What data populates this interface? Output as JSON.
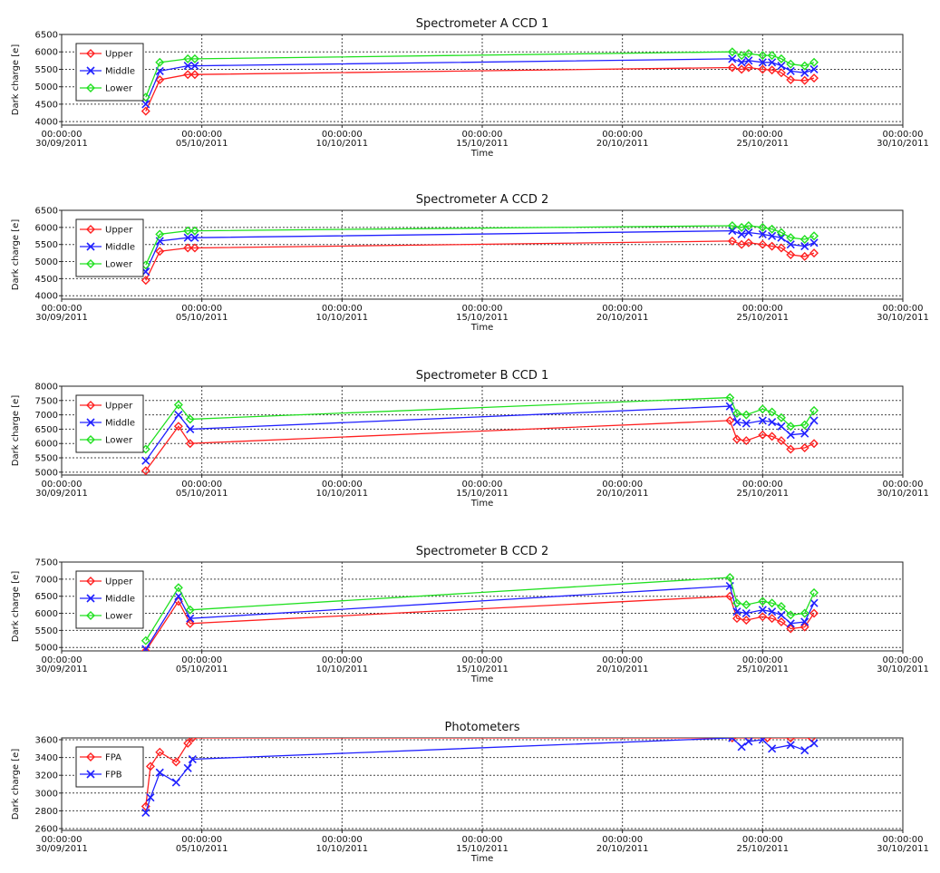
{
  "chart_data": [
    {
      "type": "line",
      "title": "Spectrometer A CCD 1",
      "xlabel": "Time",
      "ylabel": "Dark charge [e]",
      "ylim": [
        3900,
        6500
      ],
      "yticks": [
        4000,
        4500,
        5000,
        5500,
        6000,
        6500
      ],
      "xlim": [
        "2011-09-30 00:00",
        "2011-10-30 00:00"
      ],
      "xticks": [
        {
          "t": "2011-09-30 00:00",
          "line1": "00:00:00",
          "line2": "30/09/2011"
        },
        {
          "t": "2011-10-05 00:00",
          "line1": "00:00:00",
          "line2": "05/10/2011"
        },
        {
          "t": "2011-10-10 00:00",
          "line1": "00:00:00",
          "line2": "10/10/2011"
        },
        {
          "t": "2011-10-15 00:00",
          "line1": "00:00:00",
          "line2": "15/10/2011"
        },
        {
          "t": "2011-10-20 00:00",
          "line1": "00:00:00",
          "line2": "20/10/2011"
        },
        {
          "t": "2011-10-25 00:00",
          "line1": "00:00:00",
          "line2": "25/10/2011"
        },
        {
          "t": "2011-10-30 00:00",
          "line1": "00:00:00",
          "line2": "30/10/2011"
        }
      ],
      "grid": true,
      "legend_position": "top-left",
      "series": [
        {
          "name": "Upper",
          "color": "#ff2020",
          "marker": "diamond",
          "x": [
            "2011-10-03 00:00",
            "2011-10-03 12:00",
            "2011-10-04 12:00",
            "2011-10-04 18:00",
            "2011-10-23 22:00",
            "2011-10-24 06:00",
            "2011-10-24 12:00",
            "2011-10-25 00:00",
            "2011-10-25 08:00",
            "2011-10-25 16:00",
            "2011-10-26 00:00",
            "2011-10-26 12:00",
            "2011-10-26 20:00"
          ],
          "y": [
            4300,
            5200,
            5350,
            5350,
            5550,
            5500,
            5550,
            5500,
            5480,
            5400,
            5200,
            5180,
            5250
          ]
        },
        {
          "name": "Middle",
          "color": "#2020ff",
          "marker": "x",
          "x": [
            "2011-10-03 00:00",
            "2011-10-03 12:00",
            "2011-10-04 12:00",
            "2011-10-04 18:00",
            "2011-10-23 22:00",
            "2011-10-24 06:00",
            "2011-10-24 12:00",
            "2011-10-25 00:00",
            "2011-10-25 08:00",
            "2011-10-25 16:00",
            "2011-10-26 00:00",
            "2011-10-26 12:00",
            "2011-10-26 20:00"
          ],
          "y": [
            4500,
            5450,
            5600,
            5600,
            5800,
            5700,
            5750,
            5700,
            5700,
            5600,
            5450,
            5400,
            5500
          ]
        },
        {
          "name": "Lower",
          "color": "#20e020",
          "marker": "diamond",
          "x": [
            "2011-10-03 00:00",
            "2011-10-03 12:00",
            "2011-10-04 12:00",
            "2011-10-04 18:00",
            "2011-10-23 22:00",
            "2011-10-24 06:00",
            "2011-10-24 12:00",
            "2011-10-25 00:00",
            "2011-10-25 08:00",
            "2011-10-25 16:00",
            "2011-10-26 00:00",
            "2011-10-26 12:00",
            "2011-10-26 20:00"
          ],
          "y": [
            4700,
            5700,
            5800,
            5800,
            6000,
            5900,
            5950,
            5900,
            5900,
            5800,
            5650,
            5600,
            5700
          ]
        }
      ]
    },
    {
      "type": "line",
      "title": "Spectrometer A CCD 2",
      "xlabel": "Time",
      "ylabel": "Dark charge [e]",
      "ylim": [
        3900,
        6500
      ],
      "yticks": [
        4000,
        4500,
        5000,
        5500,
        6000,
        6500
      ],
      "xlim": [
        "2011-09-30 00:00",
        "2011-10-30 00:00"
      ],
      "xticks": [
        {
          "t": "2011-09-30 00:00",
          "line1": "00:00:00",
          "line2": "30/09/2011"
        },
        {
          "t": "2011-10-05 00:00",
          "line1": "00:00:00",
          "line2": "05/10/2011"
        },
        {
          "t": "2011-10-10 00:00",
          "line1": "00:00:00",
          "line2": "10/10/2011"
        },
        {
          "t": "2011-10-15 00:00",
          "line1": "00:00:00",
          "line2": "15/10/2011"
        },
        {
          "t": "2011-10-20 00:00",
          "line1": "00:00:00",
          "line2": "20/10/2011"
        },
        {
          "t": "2011-10-25 00:00",
          "line1": "00:00:00",
          "line2": "25/10/2011"
        },
        {
          "t": "2011-10-30 00:00",
          "line1": "00:00:00",
          "line2": "30/10/2011"
        }
      ],
      "grid": true,
      "legend_position": "top-left",
      "series": [
        {
          "name": "Upper",
          "color": "#ff2020",
          "marker": "diamond",
          "x": [
            "2011-10-03 00:00",
            "2011-10-03 12:00",
            "2011-10-04 12:00",
            "2011-10-04 18:00",
            "2011-10-23 22:00",
            "2011-10-24 06:00",
            "2011-10-24 12:00",
            "2011-10-25 00:00",
            "2011-10-25 08:00",
            "2011-10-25 16:00",
            "2011-10-26 00:00",
            "2011-10-26 12:00",
            "2011-10-26 20:00"
          ],
          "y": [
            4450,
            5300,
            5400,
            5400,
            5600,
            5500,
            5550,
            5500,
            5450,
            5400,
            5200,
            5150,
            5250
          ]
        },
        {
          "name": "Middle",
          "color": "#2020ff",
          "marker": "x",
          "x": [
            "2011-10-03 00:00",
            "2011-10-03 12:00",
            "2011-10-04 12:00",
            "2011-10-04 18:00",
            "2011-10-23 22:00",
            "2011-10-24 06:00",
            "2011-10-24 12:00",
            "2011-10-25 00:00",
            "2011-10-25 08:00",
            "2011-10-25 16:00",
            "2011-10-26 00:00",
            "2011-10-26 12:00",
            "2011-10-26 20:00"
          ],
          "y": [
            4700,
            5600,
            5700,
            5700,
            5900,
            5800,
            5850,
            5800,
            5750,
            5700,
            5500,
            5450,
            5550
          ]
        },
        {
          "name": "Lower",
          "color": "#20e020",
          "marker": "diamond",
          "x": [
            "2011-10-03 00:00",
            "2011-10-03 12:00",
            "2011-10-04 12:00",
            "2011-10-04 18:00",
            "2011-10-23 22:00",
            "2011-10-24 06:00",
            "2011-10-24 12:00",
            "2011-10-25 00:00",
            "2011-10-25 08:00",
            "2011-10-25 16:00",
            "2011-10-26 00:00",
            "2011-10-26 12:00",
            "2011-10-26 20:00"
          ],
          "y": [
            4900,
            5800,
            5900,
            5900,
            6050,
            6000,
            6050,
            6000,
            5950,
            5850,
            5700,
            5650,
            5750
          ]
        }
      ]
    },
    {
      "type": "line",
      "title": "Spectrometer B CCD 1",
      "xlabel": "Time",
      "ylabel": "Dark charge [e]",
      "ylim": [
        4900,
        8000
      ],
      "yticks": [
        5000,
        5500,
        6000,
        6500,
        7000,
        7500,
        8000
      ],
      "xlim": [
        "2011-09-30 00:00",
        "2011-10-30 00:00"
      ],
      "xticks": [
        {
          "t": "2011-09-30 00:00",
          "line1": "00:00:00",
          "line2": "30/09/2011"
        },
        {
          "t": "2011-10-05 00:00",
          "line1": "00:00:00",
          "line2": "05/10/2011"
        },
        {
          "t": "2011-10-10 00:00",
          "line1": "00:00:00",
          "line2": "10/10/2011"
        },
        {
          "t": "2011-10-15 00:00",
          "line1": "00:00:00",
          "line2": "15/10/2011"
        },
        {
          "t": "2011-10-20 00:00",
          "line1": "00:00:00",
          "line2": "20/10/2011"
        },
        {
          "t": "2011-10-25 00:00",
          "line1": "00:00:00",
          "line2": "25/10/2011"
        },
        {
          "t": "2011-10-30 00:00",
          "line1": "00:00:00",
          "line2": "30/10/2011"
        }
      ],
      "grid": true,
      "legend_position": "top-left",
      "series": [
        {
          "name": "Upper",
          "color": "#ff2020",
          "marker": "diamond",
          "x": [
            "2011-10-03 00:00",
            "2011-10-04 04:00",
            "2011-10-04 14:00",
            "2011-10-23 20:00",
            "2011-10-24 02:00",
            "2011-10-24 10:00",
            "2011-10-25 00:00",
            "2011-10-25 08:00",
            "2011-10-25 16:00",
            "2011-10-26 00:00",
            "2011-10-26 12:00",
            "2011-10-26 20:00"
          ],
          "y": [
            5050,
            6600,
            6000,
            6800,
            6150,
            6100,
            6300,
            6250,
            6100,
            5800,
            5850,
            6000
          ]
        },
        {
          "name": "Middle",
          "color": "#2020ff",
          "marker": "x",
          "x": [
            "2011-10-03 00:00",
            "2011-10-04 04:00",
            "2011-10-04 14:00",
            "2011-10-23 20:00",
            "2011-10-24 02:00",
            "2011-10-24 10:00",
            "2011-10-25 00:00",
            "2011-10-25 08:00",
            "2011-10-25 16:00",
            "2011-10-26 00:00",
            "2011-10-26 12:00",
            "2011-10-26 20:00"
          ],
          "y": [
            5400,
            7000,
            6500,
            7300,
            6750,
            6700,
            6800,
            6750,
            6600,
            6300,
            6350,
            6800
          ]
        },
        {
          "name": "Lower",
          "color": "#20e020",
          "marker": "diamond",
          "x": [
            "2011-10-03 00:00",
            "2011-10-04 04:00",
            "2011-10-04 14:00",
            "2011-10-23 20:00",
            "2011-10-24 02:00",
            "2011-10-24 10:00",
            "2011-10-25 00:00",
            "2011-10-25 08:00",
            "2011-10-25 16:00",
            "2011-10-26 00:00",
            "2011-10-26 12:00",
            "2011-10-26 20:00"
          ],
          "y": [
            5800,
            7350,
            6850,
            7600,
            7050,
            7000,
            7200,
            7100,
            6900,
            6600,
            6650,
            7150
          ]
        }
      ]
    },
    {
      "type": "line",
      "title": "Spectrometer B CCD 2",
      "xlabel": "Time",
      "ylabel": "Dark charge [e]",
      "ylim": [
        4900,
        7500
      ],
      "yticks": [
        5000,
        5500,
        6000,
        6500,
        7000,
        7500
      ],
      "xlim": [
        "2011-09-30 00:00",
        "2011-10-30 00:00"
      ],
      "xticks": [
        {
          "t": "2011-09-30 00:00",
          "line1": "00:00:00",
          "line2": "30/09/2011"
        },
        {
          "t": "2011-10-05 00:00",
          "line1": "00:00:00",
          "line2": "05/10/2011"
        },
        {
          "t": "2011-10-10 00:00",
          "line1": "00:00:00",
          "line2": "10/10/2011"
        },
        {
          "t": "2011-10-15 00:00",
          "line1": "00:00:00",
          "line2": "15/10/2011"
        },
        {
          "t": "2011-10-20 00:00",
          "line1": "00:00:00",
          "line2": "20/10/2011"
        },
        {
          "t": "2011-10-25 00:00",
          "line1": "00:00:00",
          "line2": "25/10/2011"
        },
        {
          "t": "2011-10-30 00:00",
          "line1": "00:00:00",
          "line2": "30/10/2011"
        }
      ],
      "grid": true,
      "legend_position": "top-left",
      "series": [
        {
          "name": "Upper",
          "color": "#ff2020",
          "marker": "diamond",
          "x": [
            "2011-10-03 00:00",
            "2011-10-04 04:00",
            "2011-10-04 14:00",
            "2011-10-23 20:00",
            "2011-10-24 02:00",
            "2011-10-24 10:00",
            "2011-10-25 00:00",
            "2011-10-25 08:00",
            "2011-10-25 16:00",
            "2011-10-26 00:00",
            "2011-10-26 12:00",
            "2011-10-26 20:00"
          ],
          "y": [
            4800,
            6350,
            5700,
            6500,
            5850,
            5800,
            5900,
            5850,
            5750,
            5550,
            5600,
            6000
          ]
        },
        {
          "name": "Middle",
          "color": "#2020ff",
          "marker": "x",
          "x": [
            "2011-10-03 00:00",
            "2011-10-04 04:00",
            "2011-10-04 14:00",
            "2011-10-23 20:00",
            "2011-10-24 02:00",
            "2011-10-24 10:00",
            "2011-10-25 00:00",
            "2011-10-25 08:00",
            "2011-10-25 16:00",
            "2011-10-26 00:00",
            "2011-10-26 12:00",
            "2011-10-26 20:00"
          ],
          "y": [
            4950,
            6500,
            5850,
            6800,
            6050,
            6000,
            6100,
            6050,
            5950,
            5700,
            5750,
            6300
          ]
        },
        {
          "name": "Lower",
          "color": "#20e020",
          "marker": "diamond",
          "x": [
            "2011-10-03 00:00",
            "2011-10-04 04:00",
            "2011-10-04 14:00",
            "2011-10-23 20:00",
            "2011-10-24 02:00",
            "2011-10-24 10:00",
            "2011-10-25 00:00",
            "2011-10-25 08:00",
            "2011-10-25 16:00",
            "2011-10-26 00:00",
            "2011-10-26 12:00",
            "2011-10-26 20:00"
          ],
          "y": [
            5200,
            6750,
            6100,
            7050,
            6300,
            6250,
            6350,
            6300,
            6200,
            5950,
            6000,
            6600
          ]
        }
      ]
    },
    {
      "type": "line",
      "title": "Photometers",
      "xlabel": "Time",
      "ylabel": "Dark charge [e]",
      "ylim": [
        2580,
        3620
      ],
      "yticks": [
        2600,
        2800,
        3000,
        3200,
        3400,
        3600
      ],
      "xlim": [
        "2011-09-30 00:00",
        "2011-10-30 00:00"
      ],
      "xticks": [
        {
          "t": "2011-09-30 00:00",
          "line1": "00:00:00",
          "line2": "30/09/2011"
        },
        {
          "t": "2011-10-05 00:00",
          "line1": "00:00:00",
          "line2": "05/10/2011"
        },
        {
          "t": "2011-10-10 00:00",
          "line1": "00:00:00",
          "line2": "10/10/2011"
        },
        {
          "t": "2011-10-15 00:00",
          "line1": "00:00:00",
          "line2": "15/10/2011"
        },
        {
          "t": "2011-10-20 00:00",
          "line1": "00:00:00",
          "line2": "20/10/2011"
        },
        {
          "t": "2011-10-25 00:00",
          "line1": "00:00:00",
          "line2": "25/10/2011"
        },
        {
          "t": "2011-10-30 00:00",
          "line1": "00:00:00",
          "line2": "30/10/2011"
        }
      ],
      "grid": true,
      "legend_position": "top-left",
      "series": [
        {
          "name": "FPA",
          "color": "#ff2020",
          "marker": "diamond",
          "x": [
            "2011-10-03 00:00",
            "2011-10-03 04:00",
            "2011-10-03 12:00",
            "2011-10-04 02:00",
            "2011-10-04 12:00",
            "2011-10-04 16:00",
            "2011-10-23 22:00",
            "2011-10-24 12:00",
            "2011-10-25 04:00",
            "2011-10-26 00:00",
            "2011-10-26 18:00"
          ],
          "y": [
            2850,
            3300,
            3460,
            3350,
            3560,
            3620,
            3650,
            3650,
            3650,
            3650,
            3650
          ]
        },
        {
          "name": "FPB",
          "color": "#2020ff",
          "marker": "x",
          "x": [
            "2011-10-03 00:00",
            "2011-10-03 04:00",
            "2011-10-03 12:00",
            "2011-10-04 02:00",
            "2011-10-04 12:00",
            "2011-10-04 16:00",
            "2011-10-23 22:00",
            "2011-10-24 06:00",
            "2011-10-24 12:00",
            "2011-10-25 00:00",
            "2011-10-25 08:00",
            "2011-10-26 00:00",
            "2011-10-26 12:00",
            "2011-10-26 20:00"
          ],
          "y": [
            2780,
            2950,
            3230,
            3120,
            3280,
            3380,
            3620,
            3520,
            3580,
            3600,
            3500,
            3540,
            3480,
            3560
          ]
        }
      ]
    }
  ]
}
